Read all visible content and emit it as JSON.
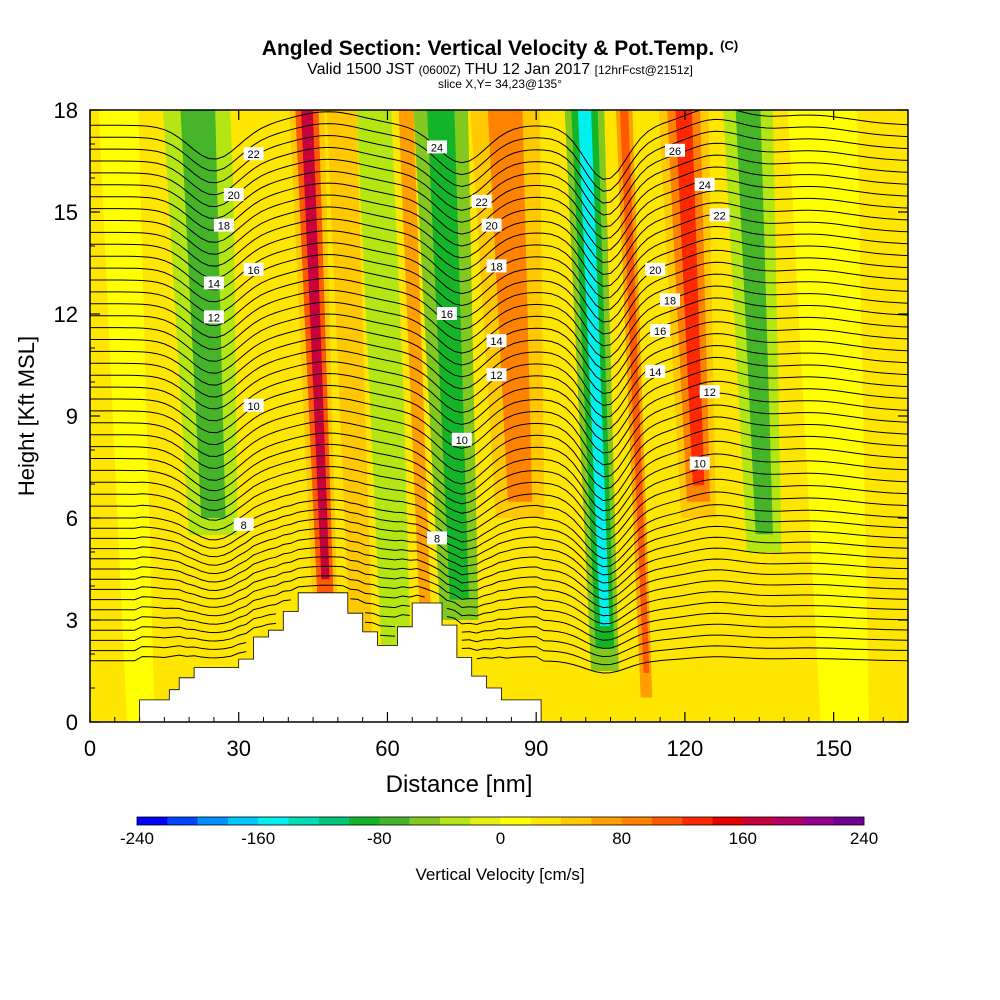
{
  "title": {
    "main": "Angled Section: Vertical Velocity & Pot.Temp.",
    "tag": "(C)",
    "valid_main": "Valid 1500 JST",
    "valid_utc": "(0600Z)",
    "valid_date": "THU 12 Jan 2017",
    "valid_fcst": "[12hrFcst@2151z]",
    "slice": "slice X,Y= 34,23@135°"
  },
  "chart_data": {
    "type": "heatmap",
    "xlabel": "Distance [nm]",
    "ylabel": "Height [Kft MSL]",
    "xlim": [
      0,
      165
    ],
    "ylim": [
      0,
      18
    ],
    "x_ticks": [
      0,
      30,
      60,
      90,
      120,
      150
    ],
    "y_ticks": [
      0,
      3,
      6,
      9,
      12,
      15,
      18
    ],
    "colorbar": {
      "label": "Vertical Velocity [cm/s]",
      "range": [
        -240,
        240
      ],
      "tick_values": [
        -240,
        -160,
        -80,
        0,
        80,
        160,
        240
      ],
      "colors": [
        "#0000ff",
        "#0045ff",
        "#0090ff",
        "#00c8ff",
        "#00f0f0",
        "#00dcb4",
        "#00c878",
        "#14b428",
        "#46b428",
        "#82c81e",
        "#b4e614",
        "#e6f014",
        "#ffff00",
        "#ffe600",
        "#ffc800",
        "#ffa000",
        "#ff8200",
        "#ff5a00",
        "#ff2800",
        "#e60000",
        "#c8003c",
        "#b40064",
        "#96008c",
        "#6e0096"
      ]
    },
    "velocity_bands": [
      {
        "x": 8,
        "width": 8,
        "value": 10
      },
      {
        "x": 24,
        "width": 14,
        "value": -80,
        "ztop": 18,
        "zbot": 5.5
      },
      {
        "x": 33,
        "width": 5,
        "value": 25
      },
      {
        "x": 46,
        "width": 7,
        "value": 170,
        "ztop": 18,
        "zbot": 3
      },
      {
        "x": 53,
        "width": 6,
        "value": 40
      },
      {
        "x": 60,
        "width": 8,
        "value": -35
      },
      {
        "x": 66,
        "width": 6,
        "value": 60
      },
      {
        "x": 73,
        "width": 11,
        "value": -90,
        "ztop": 18,
        "zbot": 3
      },
      {
        "x": 86,
        "width": 14,
        "value": 80,
        "ztop": 18,
        "zbot": 6
      },
      {
        "x": 102,
        "width": 8,
        "value": -150,
        "ztop": 18,
        "zbot": 1.5
      },
      {
        "x": 110,
        "width": 5,
        "value": 110
      },
      {
        "x": 122,
        "width": 10,
        "value": 120,
        "ztop": 18,
        "zbot": 6
      },
      {
        "x": 135,
        "width": 10,
        "value": -70,
        "ztop": 18,
        "zbot": 5
      },
      {
        "x": 150,
        "width": 14,
        "value": 15
      }
    ],
    "terrain_height": [
      [
        0,
        0
      ],
      [
        10,
        0
      ],
      [
        10,
        0.65
      ],
      [
        16,
        0.65
      ],
      [
        16,
        0.95
      ],
      [
        18,
        0.95
      ],
      [
        18,
        1.3
      ],
      [
        21,
        1.3
      ],
      [
        21,
        1.6
      ],
      [
        30,
        1.6
      ],
      [
        30,
        1.85
      ],
      [
        33,
        1.85
      ],
      [
        33,
        2.5
      ],
      [
        36,
        2.5
      ],
      [
        36,
        2.7
      ],
      [
        39,
        2.7
      ],
      [
        39,
        3.25
      ],
      [
        42,
        3.25
      ],
      [
        42,
        3.8
      ],
      [
        52,
        3.8
      ],
      [
        52,
        3.2
      ],
      [
        55,
        3.2
      ],
      [
        55,
        2.65
      ],
      [
        58,
        2.65
      ],
      [
        58,
        2.25
      ],
      [
        62,
        2.25
      ],
      [
        62,
        2.8
      ],
      [
        65,
        2.8
      ],
      [
        65,
        3.5
      ],
      [
        71,
        3.5
      ],
      [
        71,
        2.85
      ],
      [
        74,
        2.85
      ],
      [
        74,
        1.9
      ],
      [
        77,
        1.9
      ],
      [
        77,
        1.35
      ],
      [
        80,
        1.35
      ],
      [
        80,
        1.0
      ],
      [
        83,
        1.0
      ],
      [
        83,
        0.65
      ],
      [
        91,
        0.65
      ],
      [
        91,
        0
      ],
      [
        165,
        0
      ]
    ],
    "theta_contours": {
      "levels": [
        3,
        3.5,
        4,
        4.5,
        5,
        5.5,
        6,
        6.5,
        7,
        7.5,
        8,
        8.5,
        9,
        9.5,
        10,
        10.5,
        11,
        11.5,
        12,
        12.5,
        13,
        13.5,
        14,
        14.5,
        15,
        15.5,
        16,
        16.5,
        17,
        17.5,
        18,
        18.5,
        19,
        19.5,
        20,
        20.5,
        21,
        21.5,
        22,
        22.5,
        23,
        23.5,
        24,
        24.5,
        25,
        25.5,
        26,
        26.5
      ],
      "labels": [
        {
          "x": 31,
          "z": 5.8,
          "text": "8"
        },
        {
          "x": 70,
          "z": 5.4,
          "text": "8"
        },
        {
          "x": 33,
          "z": 9.3,
          "text": "10"
        },
        {
          "x": 75,
          "z": 8.3,
          "text": "10"
        },
        {
          "x": 123,
          "z": 7.6,
          "text": "10"
        },
        {
          "x": 25,
          "z": 11.9,
          "text": "12"
        },
        {
          "x": 82,
          "z": 10.2,
          "text": "12"
        },
        {
          "x": 125,
          "z": 9.7,
          "text": "12"
        },
        {
          "x": 25,
          "z": 12.9,
          "text": "14"
        },
        {
          "x": 82,
          "z": 11.2,
          "text": "14"
        },
        {
          "x": 114,
          "z": 10.3,
          "text": "14"
        },
        {
          "x": 33,
          "z": 13.3,
          "text": "16"
        },
        {
          "x": 72,
          "z": 12.0,
          "text": "16"
        },
        {
          "x": 115,
          "z": 11.5,
          "text": "16"
        },
        {
          "x": 27,
          "z": 14.6,
          "text": "18"
        },
        {
          "x": 82,
          "z": 13.4,
          "text": "18"
        },
        {
          "x": 117,
          "z": 12.4,
          "text": "18"
        },
        {
          "x": 29,
          "z": 15.5,
          "text": "20"
        },
        {
          "x": 81,
          "z": 14.6,
          "text": "20"
        },
        {
          "x": 114,
          "z": 13.3,
          "text": "20"
        },
        {
          "x": 33,
          "z": 16.7,
          "text": "22"
        },
        {
          "x": 79,
          "z": 15.3,
          "text": "22"
        },
        {
          "x": 127,
          "z": 14.9,
          "text": "22"
        },
        {
          "x": 70,
          "z": 16.9,
          "text": "24"
        },
        {
          "x": 124,
          "z": 15.8,
          "text": "24"
        },
        {
          "x": 118,
          "z": 16.8,
          "text": "26"
        }
      ]
    }
  }
}
